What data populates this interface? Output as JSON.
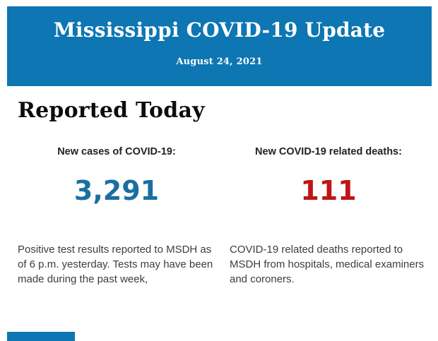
{
  "colors": {
    "header_bg": "#0d76b3",
    "header_text": "#ffffff",
    "cases_number": "#1b6fa0",
    "deaths_number": "#c01515",
    "heading_text": "#0d0d0d",
    "label_text": "#222222",
    "body_text": "#3d3d3d",
    "page_bg": "#ffffff"
  },
  "header": {
    "title": "Mississippi COVID-19 Update",
    "date": "August 24, 2021"
  },
  "main": {
    "section_title": "Reported Today",
    "stats": [
      {
        "label": "New cases of COVID-19:",
        "value": "3,291",
        "description": "Positive test results reported to MSDH as of 6 p.m. yesterday. Tests may have been made during the past week,"
      },
      {
        "label": "New COVID-19 related deaths:",
        "value": "111",
        "description": "COVID-19 related deaths reported to MSDH from hospitals, medical examiners and coroners."
      }
    ]
  }
}
